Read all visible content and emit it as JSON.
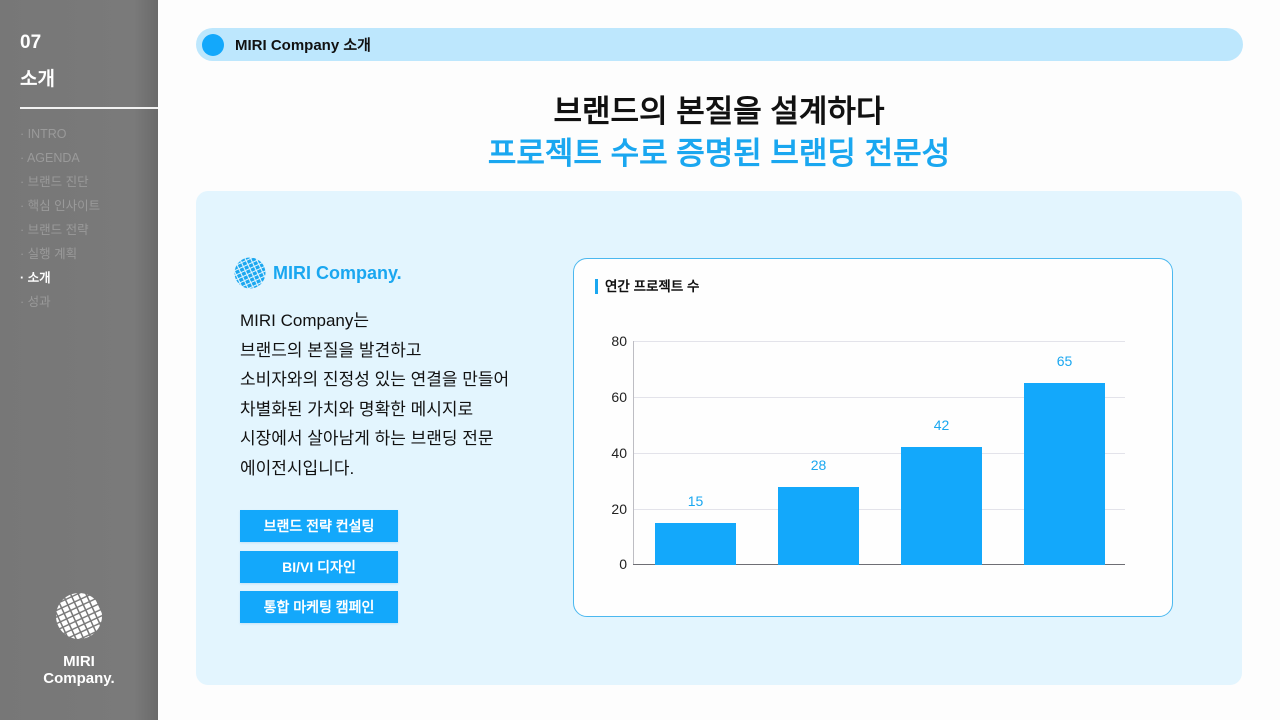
{
  "sidebar": {
    "section_number": "07",
    "section_title": "소개",
    "nav_items": [
      {
        "label": "· INTRO",
        "active": false
      },
      {
        "label": "· AGENDA",
        "active": false
      },
      {
        "label": "· 브랜드 진단",
        "active": false
      },
      {
        "label": "· 핵심 인사이트",
        "active": false
      },
      {
        "label": "· 브랜드 전략",
        "active": false
      },
      {
        "label": "· 실행 계획",
        "active": false
      },
      {
        "label": "· 소개",
        "active": true
      },
      {
        "label": "· 성과",
        "active": false
      }
    ],
    "logo_line1": "MIRI",
    "logo_line2": "Company.",
    "logo_icon": "striped-globe-icon"
  },
  "header": {
    "label": "MIRI Company 소개",
    "dot_color": "#13a8fb"
  },
  "titles": {
    "main": "브랜드의 본질을 설계하다",
    "sub": "프로젝트 수로 증명된 브랜딩 전문성"
  },
  "intro": {
    "brand_name": "MIRI Company.",
    "brand_icon": "striped-globe-icon",
    "description_lines": [
      "MIRI Company는",
      "브랜드의 본질을 발견하고",
      "소비자와의 진정성 있는 연결을 만들어",
      "차별화된 가치와 명확한 메시지로",
      "시장에서 살아남게 하는 브랜딩 전문",
      "에이전시입니다."
    ],
    "services": [
      "브랜드 전략 컨설팅",
      "BI/VI 디자인",
      "통합 마케팅 캠페인"
    ]
  },
  "colors": {
    "accent": "#13a8fb",
    "accent_text": "#1aa7f0",
    "header_bg": "#bde7fd",
    "panel_bg": "#e3f5fe",
    "sidebar_bg": "#777777"
  },
  "chart_data": {
    "type": "bar",
    "title": "연간 프로젝트 수",
    "categories": [
      "",
      "",
      "",
      ""
    ],
    "values": [
      15,
      28,
      42,
      65
    ],
    "data_labels": [
      "15",
      "28",
      "42",
      "65"
    ],
    "xlabel": "",
    "ylabel": "",
    "ylim": [
      0,
      80
    ],
    "yticks": [
      0,
      20,
      40,
      60,
      80
    ],
    "grid": true,
    "legend": null,
    "bar_color": "#13a8fb"
  }
}
